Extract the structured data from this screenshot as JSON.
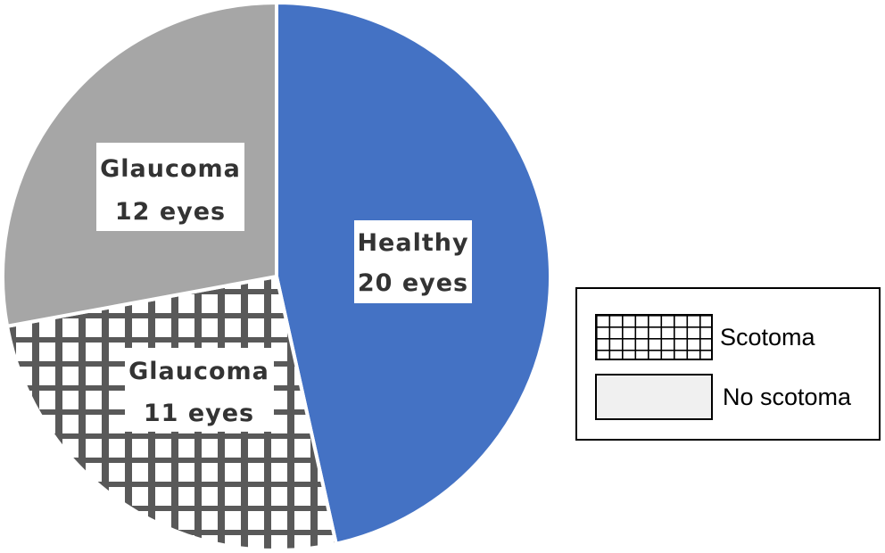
{
  "chart_data": {
    "type": "pie",
    "title": "",
    "slices": [
      {
        "category": "Healthy",
        "value": 20,
        "unit": "eyes",
        "color": "#4472c4",
        "pattern": "solid"
      },
      {
        "category": "Glaucoma",
        "value": 11,
        "unit": "eyes",
        "color": "#595959",
        "pattern": "scotoma-grid"
      },
      {
        "category": "Glaucoma",
        "value": 12,
        "unit": "eyes",
        "color": "#a6a6a6",
        "pattern": "solid"
      }
    ],
    "slice_labels": [
      {
        "line1": "Healthy",
        "line2": "20 eyes"
      },
      {
        "line1": "Glaucoma",
        "line2": "11 eyes"
      },
      {
        "line1": "Glaucoma",
        "line2": "12 eyes"
      }
    ],
    "legend": {
      "placement": "right",
      "entries": [
        {
          "label": "Scotoma",
          "swatch": "grid"
        },
        {
          "label": "No scotoma",
          "swatch": "light-gray"
        }
      ]
    },
    "colors": {
      "healthy": "#4472c4",
      "glaucoma_no_scotoma": "#a6a6a6",
      "grid_lines": "#595959",
      "legend_no_scotoma_fill": "#f0f0f0"
    }
  }
}
